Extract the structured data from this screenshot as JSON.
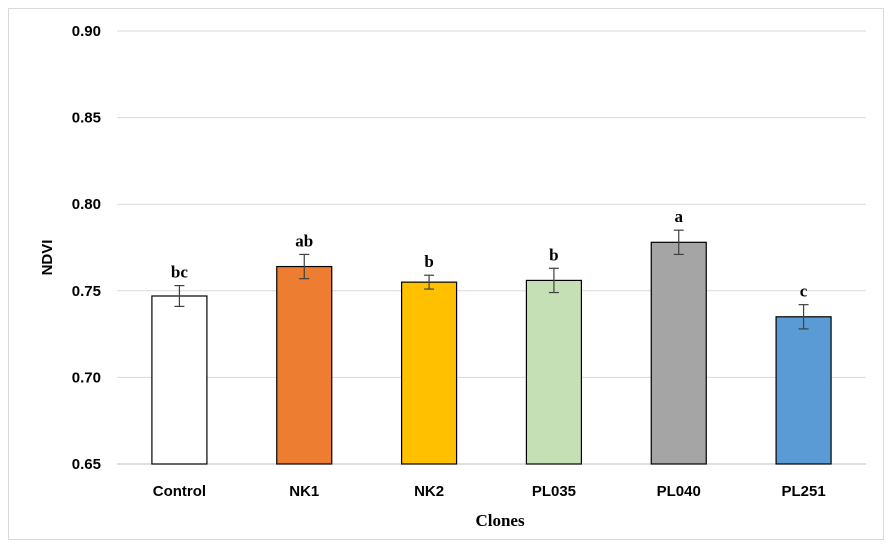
{
  "chart_data": {
    "type": "bar",
    "title": "",
    "xlabel": "Clones",
    "ylabel": "NDVI",
    "ylim": [
      0.65,
      0.9
    ],
    "yticks": [
      "0.65",
      "0.70",
      "0.75",
      "0.80",
      "0.85",
      "0.90"
    ],
    "categories": [
      "Control",
      "NK1",
      "NK2",
      "PL035",
      "PL040",
      "PL251"
    ],
    "values": [
      0.747,
      0.764,
      0.755,
      0.756,
      0.778,
      0.735
    ],
    "errors": [
      0.006,
      0.007,
      0.004,
      0.007,
      0.007,
      0.007
    ],
    "significance_labels": [
      "bc",
      "ab",
      "b",
      "b",
      "a",
      "c"
    ],
    "bar_colors": [
      "#ffffff",
      "#ed7d31",
      "#ffc000",
      "#c5e0b4",
      "#a5a5a5",
      "#5b9bd5"
    ],
    "grid": true,
    "legend": "none"
  }
}
